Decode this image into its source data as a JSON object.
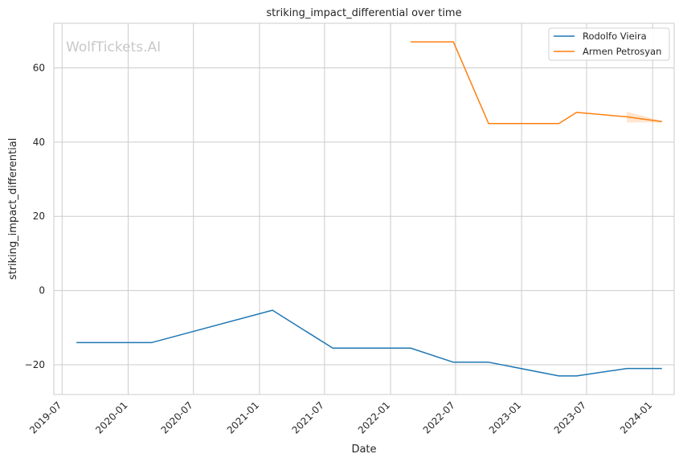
{
  "chart_data": {
    "type": "line",
    "title": "striking_impact_differential over time",
    "xlabel": "Date",
    "ylabel": "striking_impact_differential",
    "watermark": "WolfTickets.AI",
    "x_ticks": [
      "2019-07",
      "2020-01",
      "2020-07",
      "2021-01",
      "2021-07",
      "2022-01",
      "2022-07",
      "2023-01",
      "2023-07",
      "2024-01"
    ],
    "y_ticks": [
      -20,
      0,
      20,
      40,
      60
    ],
    "xlim": [
      "2019-06-08",
      "2024-03-01"
    ],
    "ylim": [
      -28,
      72
    ],
    "grid": true,
    "legend_position": "top-right",
    "series": [
      {
        "name": "Rodolfo Vieira",
        "color": "#1f77b4",
        "x": [
          "2019-08-10",
          "2020-03-07",
          "2021-02-06",
          "2021-07-24",
          "2022-02-26",
          "2022-06-25",
          "2022-10-01",
          "2023-04-15",
          "2023-06-03",
          "2023-10-21",
          "2024-01-27"
        ],
        "y": [
          -14,
          -14,
          -5.3,
          -15.5,
          -15.5,
          -19.3,
          -19.3,
          -23,
          -23,
          -21,
          -21
        ]
      },
      {
        "name": "Armen Petrosyan",
        "color": "#ff7f0e",
        "x": [
          "2022-02-26",
          "2022-06-25",
          "2022-10-01",
          "2023-04-15",
          "2023-06-03",
          "2023-10-21",
          "2024-01-27"
        ],
        "y": [
          67,
          67,
          45,
          45,
          48,
          46.8,
          45.5
        ],
        "band": {
          "x": [
            "2023-10-21",
            "2024-01-27"
          ],
          "low": [
            45.3,
            45.3
          ],
          "high": [
            48.2,
            45.7
          ]
        }
      }
    ]
  }
}
